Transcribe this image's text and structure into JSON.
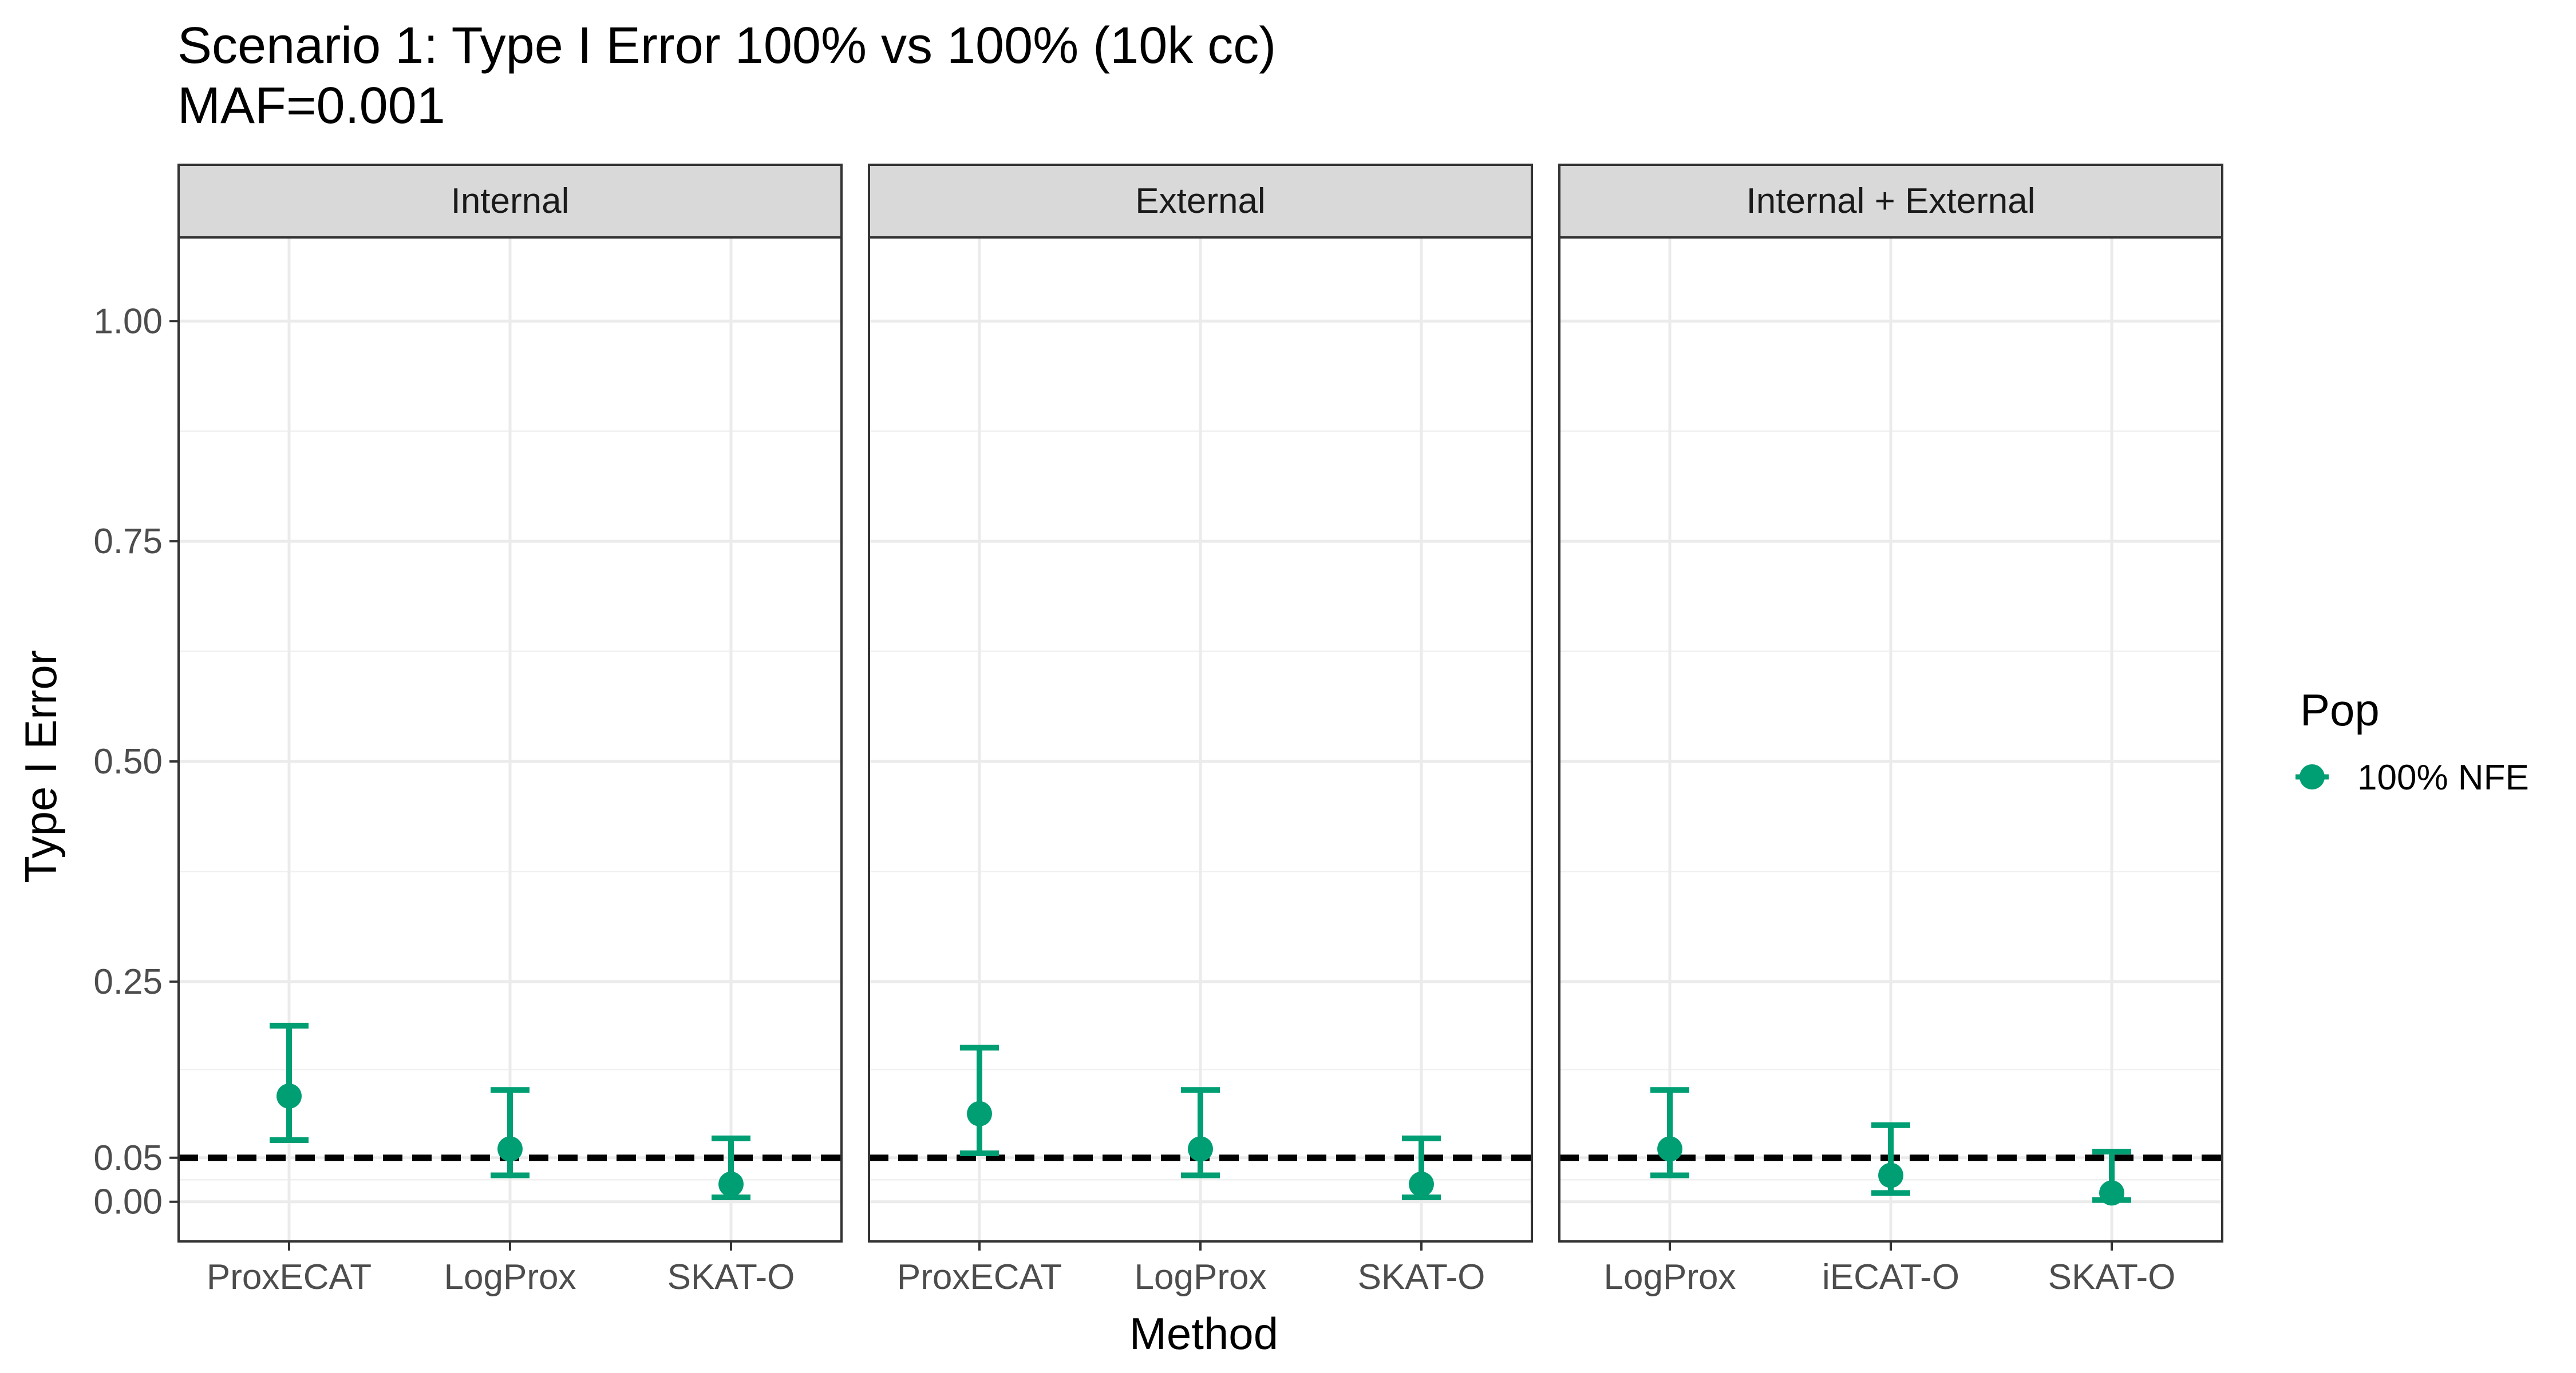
{
  "chart_data": {
    "type": "scatter",
    "title": "Scenario 1: Type I Error 100% vs 100% (10k cc)",
    "subtitle": "MAF=0.001",
    "xlabel": "Method",
    "ylabel": "Type I Error",
    "ylim": [
      -0.045,
      1.095
    ],
    "y_ticks": [
      0.0,
      0.05,
      0.25,
      0.5,
      0.75,
      1.0
    ],
    "y_tick_labels": [
      "0.00",
      "0.05",
      "0.25",
      "0.50",
      "0.75",
      "1.00"
    ],
    "reference_line": {
      "y": 0.05,
      "style": "dashed",
      "color": "#000000"
    },
    "grid": true,
    "legend": {
      "title": "Pop",
      "position": "right",
      "entries": [
        {
          "label": "100% NFE",
          "color": "#009E73"
        }
      ]
    },
    "series_color": "#009E73",
    "facets": [
      {
        "label": "Internal",
        "categories": [
          "ProxECAT",
          "LogProx",
          "SKAT-O"
        ],
        "points": [
          {
            "method": "ProxECAT",
            "y": 0.12,
            "low": 0.07,
            "high": 0.2
          },
          {
            "method": "LogProx",
            "y": 0.06,
            "low": 0.03,
            "high": 0.127
          },
          {
            "method": "SKAT-O",
            "y": 0.02,
            "low": 0.005,
            "high": 0.072
          }
        ]
      },
      {
        "label": "External",
        "categories": [
          "ProxECAT",
          "LogProx",
          "SKAT-O"
        ],
        "points": [
          {
            "method": "ProxECAT",
            "y": 0.1,
            "low": 0.055,
            "high": 0.175
          },
          {
            "method": "LogProx",
            "y": 0.06,
            "low": 0.03,
            "high": 0.127
          },
          {
            "method": "SKAT-O",
            "y": 0.02,
            "low": 0.005,
            "high": 0.072
          }
        ]
      },
      {
        "label": "Internal + External",
        "categories": [
          "LogProx",
          "iECAT-O",
          "SKAT-O"
        ],
        "points": [
          {
            "method": "LogProx",
            "y": 0.06,
            "low": 0.03,
            "high": 0.127
          },
          {
            "method": "iECAT-O",
            "y": 0.03,
            "low": 0.01,
            "high": 0.087
          },
          {
            "method": "SKAT-O",
            "y": 0.01,
            "low": 0.002,
            "high": 0.057
          }
        ]
      }
    ]
  }
}
